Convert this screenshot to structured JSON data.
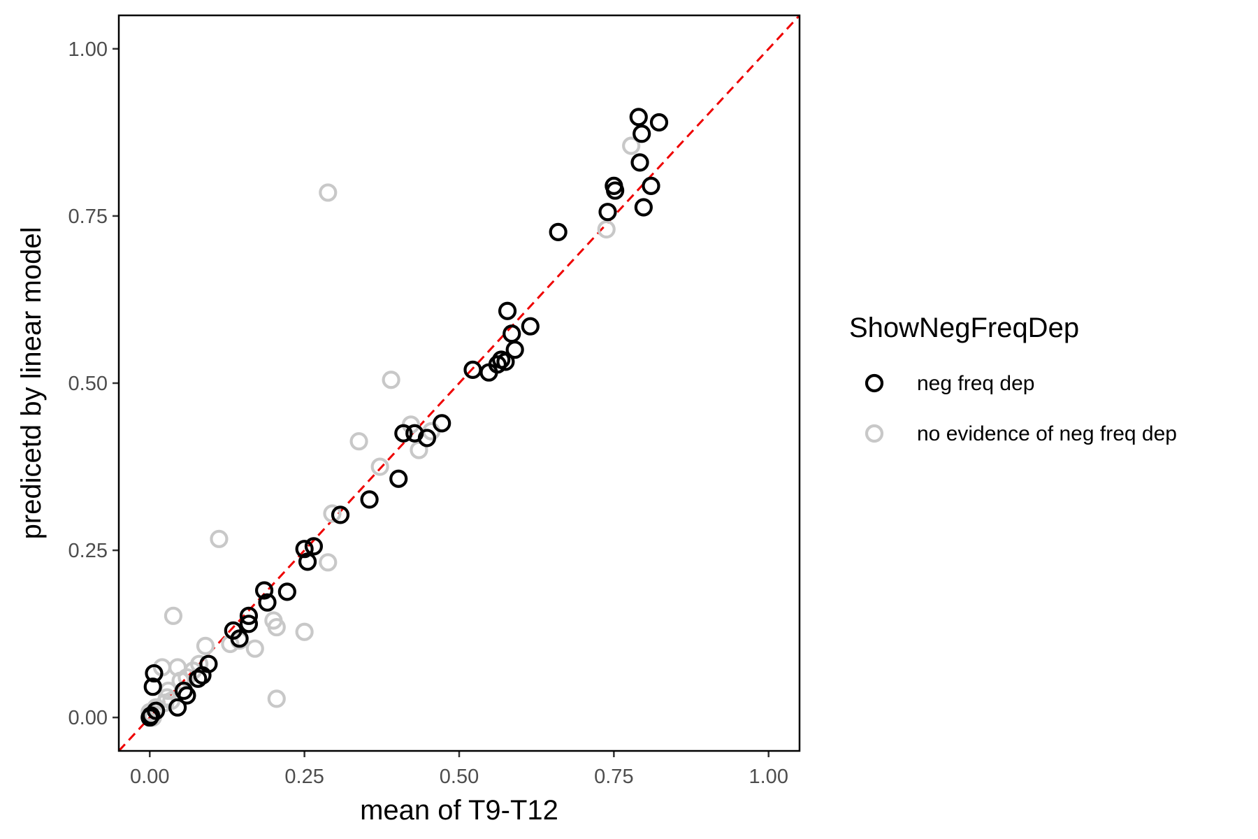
{
  "chart_data": {
    "type": "scatter",
    "xlabel": "mean of T9-T12",
    "ylabel": "predicetd by linear model",
    "xlim": [
      -0.05,
      1.05
    ],
    "ylim": [
      -0.05,
      1.05
    ],
    "x_ticks": [
      {
        "value": 0.0,
        "label": "0.00"
      },
      {
        "value": 0.25,
        "label": "0.25"
      },
      {
        "value": 0.5,
        "label": "0.50"
      },
      {
        "value": 0.75,
        "label": "0.75"
      },
      {
        "value": 1.0,
        "label": "1.00"
      }
    ],
    "y_ticks": [
      {
        "value": 0.0,
        "label": "0.00"
      },
      {
        "value": 0.25,
        "label": "0.25"
      },
      {
        "value": 0.5,
        "label": "0.50"
      },
      {
        "value": 0.75,
        "label": "0.75"
      },
      {
        "value": 1.0,
        "label": "1.00"
      }
    ],
    "grid": false,
    "reference_line": {
      "type": "identity",
      "style": "dashed",
      "color": "#ee0000"
    },
    "legend": {
      "title": "ShowNegFreqDep",
      "placement": "right"
    },
    "series": [
      {
        "name": "neg freq dep",
        "color": "#000000",
        "points": [
          [
            0.0,
            0.0
          ],
          [
            0.002,
            0.003
          ],
          [
            0.005,
            0.046
          ],
          [
            0.007,
            0.066
          ],
          [
            0.01,
            0.01
          ],
          [
            0.045,
            0.015
          ],
          [
            0.055,
            0.04
          ],
          [
            0.06,
            0.033
          ],
          [
            0.078,
            0.058
          ],
          [
            0.085,
            0.063
          ],
          [
            0.095,
            0.08
          ],
          [
            0.135,
            0.13
          ],
          [
            0.145,
            0.118
          ],
          [
            0.16,
            0.14
          ],
          [
            0.16,
            0.152
          ],
          [
            0.185,
            0.19
          ],
          [
            0.19,
            0.172
          ],
          [
            0.222,
            0.188
          ],
          [
            0.25,
            0.252
          ],
          [
            0.255,
            0.233
          ],
          [
            0.265,
            0.256
          ],
          [
            0.308,
            0.303
          ],
          [
            0.355,
            0.326
          ],
          [
            0.402,
            0.357
          ],
          [
            0.41,
            0.425
          ],
          [
            0.428,
            0.425
          ],
          [
            0.448,
            0.418
          ],
          [
            0.472,
            0.44
          ],
          [
            0.522,
            0.52
          ],
          [
            0.548,
            0.516
          ],
          [
            0.562,
            0.528
          ],
          [
            0.568,
            0.535
          ],
          [
            0.575,
            0.532
          ],
          [
            0.578,
            0.608
          ],
          [
            0.585,
            0.574
          ],
          [
            0.59,
            0.55
          ],
          [
            0.615,
            0.585
          ],
          [
            0.66,
            0.726
          ],
          [
            0.74,
            0.756
          ],
          [
            0.75,
            0.795
          ],
          [
            0.752,
            0.788
          ],
          [
            0.79,
            0.898
          ],
          [
            0.792,
            0.83
          ],
          [
            0.795,
            0.873
          ],
          [
            0.798,
            0.763
          ],
          [
            0.81,
            0.795
          ],
          [
            0.823,
            0.89
          ]
        ]
      },
      {
        "name": "no evidence of neg freq dep",
        "color": "#c8c8c8",
        "points": [
          [
            0.0,
            0.008
          ],
          [
            0.005,
            0.0
          ],
          [
            0.01,
            0.015
          ],
          [
            0.02,
            0.075
          ],
          [
            0.025,
            0.022
          ],
          [
            0.028,
            0.03
          ],
          [
            0.03,
            0.04
          ],
          [
            0.035,
            0.025
          ],
          [
            0.038,
            0.152
          ],
          [
            0.045,
            0.075
          ],
          [
            0.05,
            0.055
          ],
          [
            0.06,
            0.06
          ],
          [
            0.07,
            0.07
          ],
          [
            0.08,
            0.08
          ],
          [
            0.09,
            0.107
          ],
          [
            0.112,
            0.267
          ],
          [
            0.13,
            0.11
          ],
          [
            0.145,
            0.115
          ],
          [
            0.17,
            0.103
          ],
          [
            0.2,
            0.145
          ],
          [
            0.205,
            0.028
          ],
          [
            0.205,
            0.135
          ],
          [
            0.25,
            0.128
          ],
          [
            0.288,
            0.785
          ],
          [
            0.288,
            0.232
          ],
          [
            0.295,
            0.305
          ],
          [
            0.338,
            0.413
          ],
          [
            0.372,
            0.375
          ],
          [
            0.39,
            0.505
          ],
          [
            0.422,
            0.438
          ],
          [
            0.435,
            0.4
          ],
          [
            0.455,
            0.428
          ],
          [
            0.738,
            0.73
          ],
          [
            0.778,
            0.855
          ]
        ]
      }
    ]
  }
}
